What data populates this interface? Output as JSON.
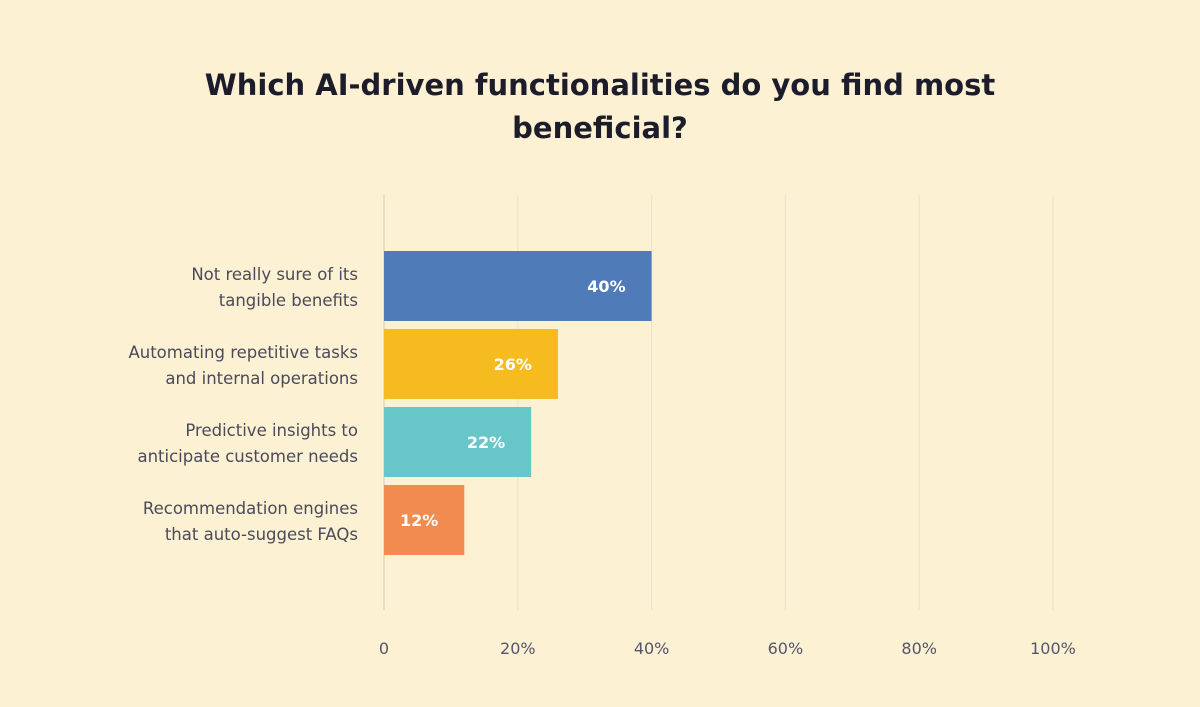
{
  "chart_data": {
    "type": "bar",
    "orientation": "horizontal",
    "title": "Which AI-driven functionalities do you find most beneficial?",
    "title_lines": [
      "Which AI-driven functionalities do you find most",
      "beneficial?"
    ],
    "categories": [
      [
        "Not really sure of its",
        "tangible benefits"
      ],
      [
        "Automating repetitive tasks",
        "and internal operations"
      ],
      [
        "Predictive insights to",
        "anticipate customer needs"
      ],
      [
        "Recommendation engines",
        "that auto-suggest FAQs"
      ]
    ],
    "values": [
      40,
      26,
      22,
      12
    ],
    "data_labels": [
      "40%",
      "26%",
      "22%",
      "12%"
    ],
    "colors": [
      "#4f7cb9",
      "#f5bb1f",
      "#67c6c8",
      "#f28b50"
    ],
    "xlim": [
      0,
      100
    ],
    "xticks": [
      0,
      20,
      40,
      60,
      80,
      100
    ],
    "xtick_labels": [
      "0",
      "20%",
      "40%",
      "60%",
      "80%",
      "100%"
    ],
    "grid": true,
    "background": "#fdf1d3"
  }
}
